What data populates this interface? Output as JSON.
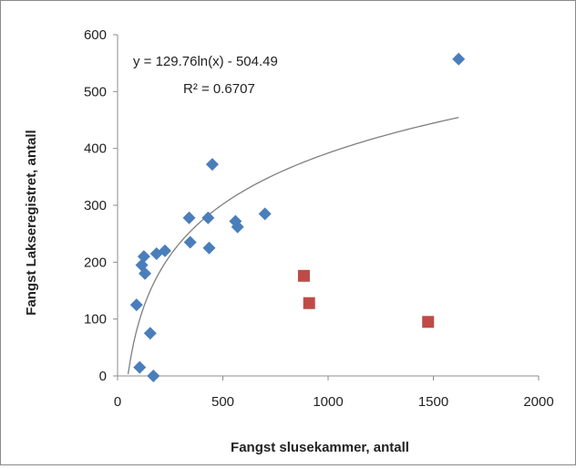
{
  "chart_data": {
    "type": "scatter",
    "xlabel": "Fangst slusekammer, antall",
    "ylabel": "Fangst Lakseregistret, antall",
    "xlim": [
      0,
      2000
    ],
    "ylim": [
      0,
      600
    ],
    "x_ticks": [
      "0",
      "500",
      "1000",
      "1500",
      "2000"
    ],
    "y_ticks": [
      "0",
      "100",
      "200",
      "300",
      "400",
      "500",
      "600"
    ],
    "grid": false,
    "series": [
      {
        "marker": "diamond",
        "color": "#4a7ebb",
        "points": [
          [
            90,
            125
          ],
          [
            105,
            15
          ],
          [
            115,
            195
          ],
          [
            125,
            210
          ],
          [
            130,
            180
          ],
          [
            155,
            75
          ],
          [
            170,
            0
          ],
          [
            185,
            215
          ],
          [
            225,
            220
          ],
          [
            340,
            278
          ],
          [
            345,
            235
          ],
          [
            430,
            278
          ],
          [
            435,
            225
          ],
          [
            450,
            372
          ],
          [
            560,
            272
          ],
          [
            570,
            262
          ],
          [
            700,
            285
          ],
          [
            1620,
            557
          ]
        ]
      },
      {
        "marker": "square",
        "color": "#be4b48",
        "points": [
          [
            885,
            176
          ],
          [
            910,
            128
          ],
          [
            1475,
            95
          ]
        ]
      }
    ],
    "trendline": {
      "type": "log",
      "a": 129.76,
      "b": -504.49,
      "x_range": [
        50,
        1620
      ],
      "color": "#7f7f7f",
      "equation": "y = 129.76ln(x) - 504.49",
      "r_squared": "R² = 0.6707"
    }
  }
}
